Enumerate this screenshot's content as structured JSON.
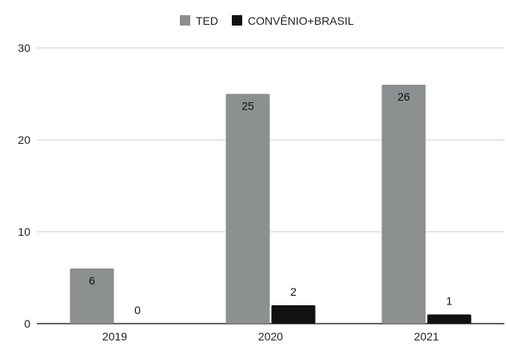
{
  "chart_data": {
    "type": "bar",
    "categories": [
      "2019",
      "2020",
      "2021"
    ],
    "series": [
      {
        "name": "TED",
        "values": [
          6,
          25,
          26
        ],
        "color": "#8c9090"
      },
      {
        "name": "CONVÊNIO+BRASIL",
        "values": [
          0,
          2,
          1
        ],
        "color": "#111111"
      }
    ],
    "ylim": [
      0,
      30
    ],
    "yticks": [
      0,
      10,
      20,
      30
    ],
    "grid": true,
    "legend_position": "top-center",
    "data_labels": true
  }
}
